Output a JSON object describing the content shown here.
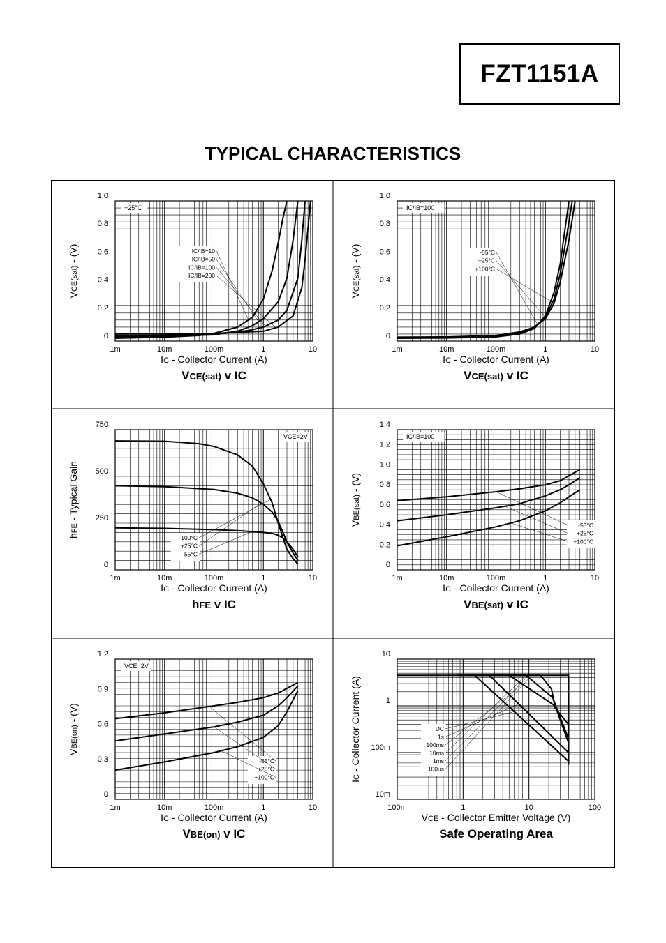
{
  "header": {
    "part_number": "FZT1151A",
    "section_title": "TYPICAL CHARACTERISTICS"
  },
  "chart_data": [
    {
      "id": "vcesat",
      "type": "line",
      "title_main": "V",
      "title_sub": "CE(sat)",
      "title_tail": " v I",
      "title_tail_sub": "C",
      "ylabel_main": "V",
      "ylabel_sub": "CE(sat)",
      "ylabel_tail": " - (V)",
      "xlabel_main": "I",
      "xlabel_sub": "C",
      "xlabel_tail": " - Collector Current (A)",
      "xscale": "log",
      "xlim": [
        0.001,
        10
      ],
      "ylim": [
        0,
        1.0
      ],
      "xticks": [
        {
          "v": 0.001,
          "l": "1m"
        },
        {
          "v": 0.01,
          "l": "10m"
        },
        {
          "v": 0.1,
          "l": "100m"
        },
        {
          "v": 1,
          "l": "1"
        },
        {
          "v": 10,
          "l": "10"
        }
      ],
      "yticks": [
        {
          "v": 0,
          "l": "0"
        },
        {
          "v": 0.2,
          "l": "0.2"
        },
        {
          "v": 0.4,
          "l": "0.4"
        },
        {
          "v": 0.6,
          "l": "0.6"
        },
        {
          "v": 0.8,
          "l": "0.8"
        },
        {
          "v": 1.0,
          "l": "1.0"
        }
      ],
      "ygrid": 0.05,
      "legend_note": "+25°C",
      "labels": [
        "IC/IB=10",
        "IC/IB=50",
        "IC/IB=100",
        "IC/IB=200"
      ],
      "series": [
        {
          "name": "IC/IB=10",
          "x": [
            0.001,
            0.01,
            0.05,
            0.1,
            0.3,
            0.6,
            1,
            1.5,
            2,
            2.5,
            3
          ],
          "y": [
            0.02,
            0.028,
            0.04,
            0.055,
            0.1,
            0.17,
            0.3,
            0.5,
            0.7,
            0.88,
            1.0
          ]
        },
        {
          "name": "IC/IB=50",
          "x": [
            0.001,
            0.01,
            0.1,
            0.3,
            0.6,
            1,
            2,
            3,
            4,
            5
          ],
          "y": [
            0.03,
            0.035,
            0.045,
            0.07,
            0.11,
            0.16,
            0.28,
            0.45,
            0.72,
            1.0
          ]
        },
        {
          "name": "IC/IB=100",
          "x": [
            0.001,
            0.01,
            0.1,
            0.5,
            1,
            2,
            3,
            5,
            6,
            7
          ],
          "y": [
            0.04,
            0.042,
            0.05,
            0.075,
            0.1,
            0.15,
            0.22,
            0.45,
            0.72,
            1.0
          ]
        },
        {
          "name": "IC/IB=200",
          "x": [
            0.001,
            0.01,
            0.1,
            1,
            2,
            4,
            6,
            7,
            8,
            9
          ],
          "y": [
            0.05,
            0.052,
            0.055,
            0.07,
            0.1,
            0.18,
            0.38,
            0.58,
            0.8,
            1.0
          ]
        }
      ]
    },
    {
      "id": "vcesat_temp",
      "type": "line",
      "title_main": "V",
      "title_sub": "CE(sat)",
      "title_tail": " v I",
      "title_tail_sub": "C",
      "ylabel_main": "V",
      "ylabel_sub": "CE(sat)",
      "ylabel_tail": " - (V)",
      "xlabel_main": "I",
      "xlabel_sub": "C",
      "xlabel_tail": " - Collector Current (A)",
      "xscale": "log",
      "xlim": [
        0.001,
        10
      ],
      "ylim": [
        0,
        1.0
      ],
      "xticks": [
        {
          "v": 0.001,
          "l": "1m"
        },
        {
          "v": 0.01,
          "l": "10m"
        },
        {
          "v": 0.1,
          "l": "100m"
        },
        {
          "v": 1,
          "l": "1"
        },
        {
          "v": 10,
          "l": "10"
        }
      ],
      "yticks": [
        {
          "v": 0,
          "l": "0"
        },
        {
          "v": 0.2,
          "l": "0.2"
        },
        {
          "v": 0.4,
          "l": "0.4"
        },
        {
          "v": 0.6,
          "l": "0.6"
        },
        {
          "v": 0.8,
          "l": "0.8"
        },
        {
          "v": 1.0,
          "l": "1.0"
        }
      ],
      "ygrid": 0.05,
      "legend_note": "IC/IB=100",
      "labels": [
        "-55°C",
        "+25°C",
        "+100°C"
      ],
      "series": [
        {
          "name": "-55°C",
          "x": [
            0.001,
            0.01,
            0.1,
            0.3,
            0.6,
            1,
            1.5,
            2,
            2.5,
            3
          ],
          "y": [
            0.02,
            0.022,
            0.03,
            0.05,
            0.09,
            0.18,
            0.35,
            0.55,
            0.8,
            1.0
          ]
        },
        {
          "name": "+25°C",
          "x": [
            0.001,
            0.01,
            0.1,
            0.3,
            0.6,
            1,
            1.5,
            2,
            2.5,
            3,
            3.5
          ],
          "y": [
            0.025,
            0.026,
            0.034,
            0.06,
            0.1,
            0.17,
            0.3,
            0.48,
            0.68,
            0.85,
            1.0
          ]
        },
        {
          "name": "+100°C",
          "x": [
            0.001,
            0.01,
            0.1,
            0.3,
            0.6,
            1,
            1.5,
            2,
            3,
            4
          ],
          "y": [
            0.028,
            0.03,
            0.04,
            0.065,
            0.1,
            0.16,
            0.27,
            0.42,
            0.72,
            1.0
          ]
        }
      ]
    },
    {
      "id": "hfe",
      "type": "line",
      "title_main": "h",
      "title_sub": "FE",
      "title_tail": " v I",
      "title_tail_sub": "C",
      "ylabel_main": "h",
      "ylabel_sub": "FE",
      "ylabel_tail": " - Typical Gain",
      "xlabel_main": "I",
      "xlabel_sub": "C",
      "xlabel_tail": " - Collector Current (A)",
      "xscale": "log",
      "xlim": [
        0.001,
        10
      ],
      "ylim": [
        0,
        750
      ],
      "xticks": [
        {
          "v": 0.001,
          "l": "1m"
        },
        {
          "v": 0.01,
          "l": "10m"
        },
        {
          "v": 0.1,
          "l": "100m"
        },
        {
          "v": 1,
          "l": "1"
        },
        {
          "v": 10,
          "l": "10"
        }
      ],
      "yticks": [
        {
          "v": 0,
          "l": "0"
        },
        {
          "v": 250,
          "l": "250"
        },
        {
          "v": 500,
          "l": "500"
        },
        {
          "v": 750,
          "l": "750"
        }
      ],
      "ygrid": 50,
      "legend_note": "VCE=2V",
      "labels": [
        "+100°C",
        "+25°C",
        "-55°C"
      ],
      "series": [
        {
          "name": "+100°C",
          "x": [
            0.001,
            0.01,
            0.05,
            0.1,
            0.3,
            0.6,
            1,
            1.5,
            2,
            2.5,
            3,
            4,
            5
          ],
          "y": [
            690,
            688,
            675,
            660,
            615,
            555,
            460,
            360,
            250,
            170,
            110,
            60,
            30
          ]
        },
        {
          "name": "+25°C",
          "x": [
            0.001,
            0.01,
            0.1,
            0.3,
            0.6,
            1,
            1.5,
            2,
            2.5,
            3,
            4,
            5
          ],
          "y": [
            450,
            445,
            430,
            410,
            385,
            350,
            310,
            260,
            200,
            150,
            90,
            50
          ]
        },
        {
          "name": "-55°C",
          "x": [
            0.001,
            0.01,
            0.1,
            0.3,
            0.6,
            1,
            1.5,
            2,
            2.5,
            3,
            4,
            5
          ],
          "y": [
            225,
            222,
            215,
            210,
            205,
            200,
            195,
            185,
            170,
            150,
            110,
            70
          ]
        }
      ]
    },
    {
      "id": "vbesat",
      "type": "line",
      "title_main": "V",
      "title_sub": "BE(sat)",
      "title_tail": " v I",
      "title_tail_sub": "C",
      "ylabel_main": "V",
      "ylabel_sub": "BE(sat)",
      "ylabel_tail": " - (V)",
      "xlabel_main": "I",
      "xlabel_sub": "C",
      "xlabel_tail": " - Collector Current (A)",
      "xscale": "log",
      "xlim": [
        0.001,
        10
      ],
      "ylim": [
        0,
        1.4
      ],
      "xticks": [
        {
          "v": 0.001,
          "l": "1m"
        },
        {
          "v": 0.01,
          "l": "10m"
        },
        {
          "v": 0.1,
          "l": "100m"
        },
        {
          "v": 1,
          "l": "1"
        },
        {
          "v": 10,
          "l": "10"
        }
      ],
      "yticks": [
        {
          "v": 0,
          "l": "0"
        },
        {
          "v": 0.2,
          "l": "0.2"
        },
        {
          "v": 0.4,
          "l": "0.4"
        },
        {
          "v": 0.6,
          "l": "0.6"
        },
        {
          "v": 0.8,
          "l": "0.8"
        },
        {
          "v": 1.0,
          "l": "1.0"
        },
        {
          "v": 1.2,
          "l": "1.2"
        },
        {
          "v": 1.4,
          "l": "1.4"
        }
      ],
      "ygrid": 0.05,
      "legend_note": "IC/IB=100",
      "labels": [
        "-55°C",
        "+25°C",
        "+100°C"
      ],
      "series": [
        {
          "name": "-55°C",
          "x": [
            0.001,
            0.01,
            0.1,
            0.3,
            1,
            2,
            3,
            5
          ],
          "y": [
            0.69,
            0.73,
            0.78,
            0.81,
            0.85,
            0.89,
            0.94,
            1.0
          ]
        },
        {
          "name": "+25°C",
          "x": [
            0.001,
            0.01,
            0.1,
            0.3,
            1,
            2,
            3,
            5
          ],
          "y": [
            0.49,
            0.55,
            0.62,
            0.66,
            0.74,
            0.8,
            0.85,
            0.92
          ]
        },
        {
          "name": "+100°C",
          "x": [
            0.001,
            0.01,
            0.1,
            0.3,
            1,
            2,
            3,
            5
          ],
          "y": [
            0.24,
            0.33,
            0.43,
            0.49,
            0.59,
            0.67,
            0.73,
            0.8
          ]
        }
      ]
    },
    {
      "id": "vbeon",
      "type": "line",
      "title_main": "V",
      "title_sub": "BE(on)",
      "title_tail": " v I",
      "title_tail_sub": "C",
      "ylabel_main": "V",
      "ylabel_sub": "BE(on)",
      "ylabel_tail": " - (V)",
      "xlabel_main": "I",
      "xlabel_sub": "C",
      "xlabel_tail": " - Collector Current (A)",
      "xscale": "log",
      "xlim": [
        0.001,
        10
      ],
      "ylim": [
        0,
        1.2
      ],
      "xticks": [
        {
          "v": 0.001,
          "l": "1m"
        },
        {
          "v": 0.01,
          "l": "10m"
        },
        {
          "v": 0.1,
          "l": "100m"
        },
        {
          "v": 1,
          "l": "1"
        },
        {
          "v": 10,
          "l": "10"
        }
      ],
      "yticks": [
        {
          "v": 0,
          "l": "0"
        },
        {
          "v": 0.3,
          "l": "0.3"
        },
        {
          "v": 0.6,
          "l": "0.6"
        },
        {
          "v": 0.9,
          "l": "0.9"
        },
        {
          "v": 1.2,
          "l": "1.2"
        }
      ],
      "ygrid": 0.05,
      "legend_note": "VCE=2V",
      "labels": [
        "-55°C",
        "+25°C",
        "+100°C"
      ],
      "series": [
        {
          "name": "-55°C",
          "x": [
            0.001,
            0.01,
            0.1,
            0.3,
            1,
            2,
            3,
            5
          ],
          "y": [
            0.69,
            0.74,
            0.8,
            0.83,
            0.87,
            0.91,
            0.95,
            1.0
          ]
        },
        {
          "name": "+25°C",
          "x": [
            0.001,
            0.01,
            0.1,
            0.3,
            1,
            2,
            3,
            5
          ],
          "y": [
            0.5,
            0.56,
            0.62,
            0.66,
            0.72,
            0.8,
            0.87,
            0.97
          ]
        },
        {
          "name": "+100°C",
          "x": [
            0.001,
            0.01,
            0.1,
            0.3,
            1,
            2,
            3,
            5
          ],
          "y": [
            0.25,
            0.32,
            0.4,
            0.45,
            0.53,
            0.63,
            0.75,
            0.93
          ]
        }
      ]
    },
    {
      "id": "soa",
      "type": "line",
      "title_plain": "Safe Operating Area",
      "ylabel_main": "I",
      "ylabel_sub": "C",
      "ylabel_tail": " - Collector Current (A)",
      "xlabel_main": "V",
      "xlabel_sub": "CE",
      "xlabel_tail": " - Collector Emitter Voltage (V)",
      "xscale": "log",
      "yscale": "log",
      "xlim": [
        0.1,
        100
      ],
      "ylim": [
        0.01,
        10
      ],
      "xticks": [
        {
          "v": 0.1,
          "l": "100m"
        },
        {
          "v": 1,
          "l": "1"
        },
        {
          "v": 10,
          "l": "10"
        },
        {
          "v": 100,
          "l": "100"
        }
      ],
      "yticks": [
        {
          "v": 0.01,
          "l": "10m"
        },
        {
          "v": 0.1,
          "l": "100m"
        },
        {
          "v": 1,
          "l": "1"
        },
        {
          "v": 10,
          "l": "10"
        }
      ],
      "labels": [
        "DC",
        "1s",
        "100ms",
        "10ms",
        "1ms",
        "100us"
      ],
      "series": [
        {
          "name": "DC",
          "x": [
            0.8,
            1.5,
            40,
            40
          ],
          "y": [
            4.5,
            4.5,
            0.065,
            0.055
          ]
        },
        {
          "name": "1s",
          "x": [
            1.1,
            2.5,
            40,
            40
          ],
          "y": [
            4.5,
            4.5,
            0.1,
            0.06
          ]
        },
        {
          "name": "100ms",
          "x": [
            1.8,
            5,
            25,
            40,
            40
          ],
          "y": [
            4.5,
            4.5,
            1.0,
            0.16,
            0.07
          ]
        },
        {
          "name": "10ms",
          "x": [
            2.5,
            9,
            23,
            30,
            40,
            40
          ],
          "y": [
            4.5,
            4.5,
            1.5,
            0.55,
            0.2,
            0.08
          ]
        },
        {
          "name": "1ms",
          "x": [
            3.3,
            15,
            22,
            25,
            40,
            40
          ],
          "y": [
            4.5,
            4.5,
            2.3,
            0.9,
            0.4,
            0.12
          ]
        },
        {
          "name": "100us",
          "x": [
            0.1,
            40,
            40
          ],
          "y": [
            4.5,
            4.5,
            0.3
          ]
        }
      ]
    }
  ]
}
